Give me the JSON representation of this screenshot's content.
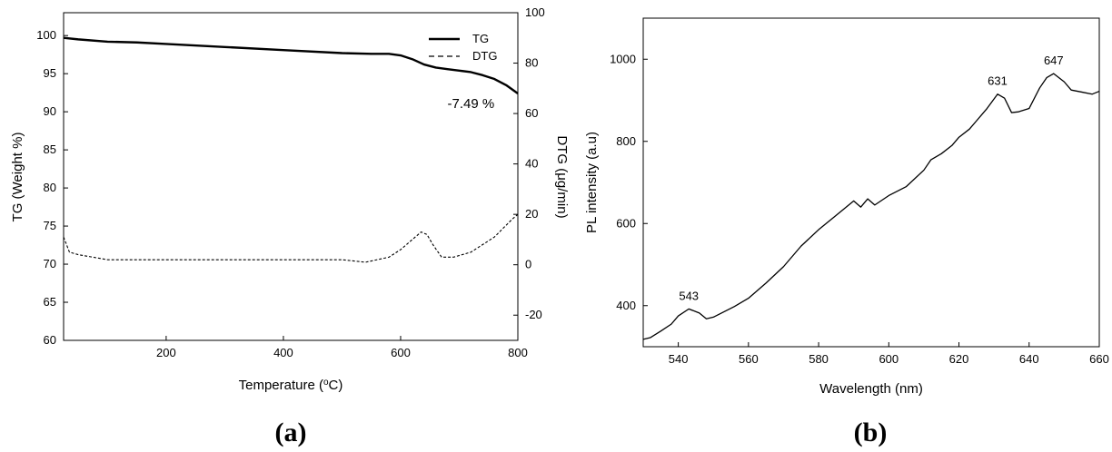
{
  "chart_data": [
    {
      "type": "line",
      "panel_label": "(a)",
      "xlabel": "Temperature (",
      "xlabel_sup": "o",
      "xlabel_tail": "C)",
      "ylabel": "TG (Weight %)",
      "y2label": "DTG (μg/min)",
      "xlim": [
        25,
        800
      ],
      "ylim": [
        60,
        103
      ],
      "y2lim": [
        -30,
        100
      ],
      "xticks": [
        200,
        400,
        600,
        800
      ],
      "yticks": [
        60,
        65,
        70,
        75,
        80,
        85,
        90,
        95,
        100
      ],
      "y2ticks": [
        -20,
        0,
        20,
        40,
        60,
        80,
        100
      ],
      "grid": false,
      "legend_position": "top-right",
      "series": [
        {
          "name": "TG",
          "axis": "left",
          "style": "solid",
          "x": [
            25,
            50,
            100,
            150,
            200,
            300,
            400,
            500,
            550,
            580,
            600,
            620,
            640,
            660,
            680,
            700,
            720,
            740,
            760,
            780,
            800
          ],
          "y": [
            99.7,
            99.5,
            99.2,
            99.1,
            98.9,
            98.5,
            98.1,
            97.7,
            97.6,
            97.6,
            97.4,
            96.9,
            96.2,
            95.8,
            95.6,
            95.4,
            95.2,
            94.8,
            94.3,
            93.5,
            92.4
          ]
        },
        {
          "name": "DTG",
          "axis": "right",
          "style": "dashed",
          "x": [
            25,
            35,
            50,
            100,
            150,
            200,
            300,
            400,
            500,
            540,
            560,
            580,
            600,
            620,
            635,
            645,
            655,
            670,
            690,
            720,
            760,
            790,
            800
          ],
          "y": [
            11,
            5,
            4,
            2,
            2,
            2,
            2,
            2,
            2,
            1,
            2,
            3,
            6,
            10,
            13,
            12,
            8,
            3,
            3,
            5,
            11,
            18,
            20
          ]
        }
      ],
      "annotations": [
        {
          "text": "-7.49 %",
          "x": 720,
          "y": 90.5
        }
      ]
    },
    {
      "type": "line",
      "panel_label": "(b)",
      "xlabel": "Wavelength (nm)",
      "ylabel": "PL intensity (a.u)",
      "xlim": [
        530,
        660
      ],
      "ylim": [
        300,
        1100
      ],
      "xticks": [
        540,
        560,
        580,
        600,
        620,
        640,
        660
      ],
      "yticks": [
        400,
        600,
        800,
        1000
      ],
      "grid": false,
      "series": [
        {
          "name": "",
          "x": [
            530,
            532,
            535,
            538,
            540,
            543,
            546,
            548,
            550,
            553,
            556,
            560,
            565,
            570,
            575,
            580,
            585,
            590,
            592,
            594,
            596,
            600,
            605,
            610,
            612,
            615,
            618,
            620,
            623,
            625,
            628,
            631,
            633,
            635,
            637,
            640,
            643,
            645,
            647,
            650,
            652,
            655,
            658,
            660
          ],
          "y": [
            318,
            322,
            338,
            355,
            375,
            392,
            382,
            368,
            372,
            385,
            398,
            418,
            455,
            495,
            545,
            585,
            620,
            655,
            640,
            660,
            645,
            668,
            690,
            730,
            755,
            770,
            790,
            810,
            830,
            850,
            880,
            915,
            905,
            870,
            872,
            880,
            930,
            955,
            965,
            945,
            925,
            920,
            915,
            922
          ]
        }
      ],
      "annotations": [
        {
          "text": "543",
          "x": 543,
          "y": 392
        },
        {
          "text": "631",
          "x": 631,
          "y": 915
        },
        {
          "text": "647",
          "x": 647,
          "y": 965
        }
      ]
    }
  ]
}
